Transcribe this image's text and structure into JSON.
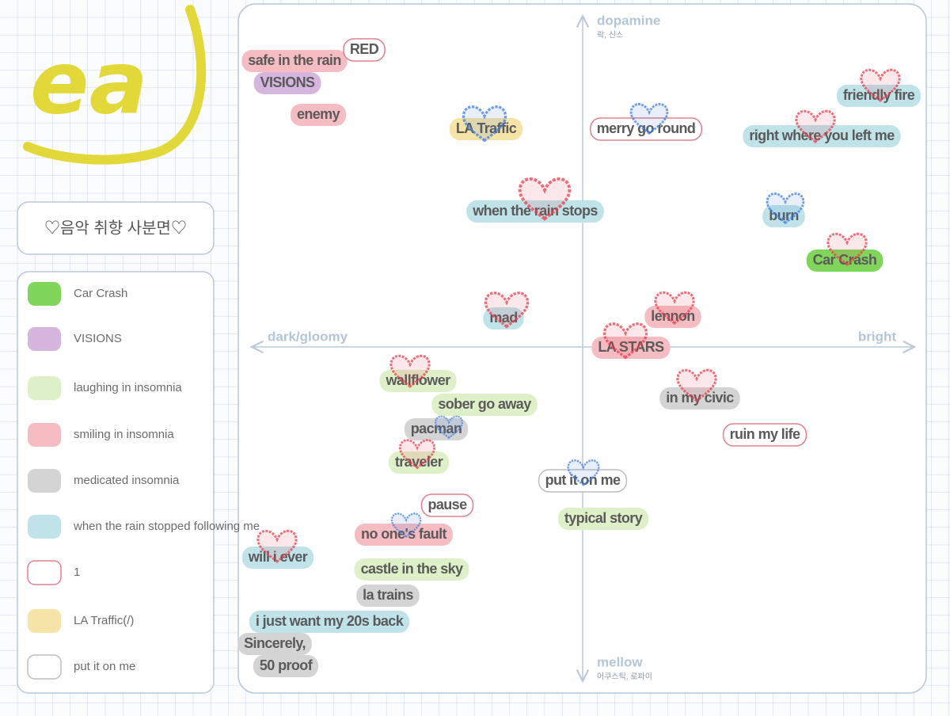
{
  "logo": "ea",
  "title": "♡음악 취향 사분면♡",
  "legend": [
    {
      "label": "Car Crash",
      "color": "#7fd65a",
      "style": "fill"
    },
    {
      "label": "VISIONS",
      "color": "#d6b6df",
      "style": "fill"
    },
    {
      "label": "laughing in insomnia",
      "color": "#def0c8",
      "style": "fill"
    },
    {
      "label": "smiling in insomnia",
      "color": "#f5bcc2",
      "style": "fill"
    },
    {
      "label": "medicated insomnia",
      "color": "#d4d4d4",
      "style": "fill"
    },
    {
      "label": "when the rain stopped following me",
      "color": "#bfe3e9",
      "style": "fill"
    },
    {
      "label": "1",
      "color": "#e0808e",
      "style": "outline"
    },
    {
      "label": "LA Traffic(/)",
      "color": "#f5e3a8",
      "style": "fill"
    },
    {
      "label": "put it on me",
      "color": "#bdbdbd",
      "style": "outline"
    }
  ],
  "axes": {
    "top": {
      "label": "dopamine",
      "sub": "락, 신스"
    },
    "bottom": {
      "label": "mellow",
      "sub": "어쿠스틱, 로파이"
    },
    "left": {
      "label": "dark/gloomy"
    },
    "right": {
      "label": "bright"
    }
  },
  "songs": [
    {
      "label": "safe in the rain",
      "color": "#f5bcc2",
      "style": "fill"
    },
    {
      "label": "RED",
      "color": "#e0808e",
      "style": "outline"
    },
    {
      "label": "VISIONS",
      "color": "#d6b6df",
      "style": "fill"
    },
    {
      "label": "enemy",
      "color": "#f5bcc2",
      "style": "fill"
    },
    {
      "label": "LA Traffic",
      "color": "#f5e3a8",
      "style": "fill"
    },
    {
      "label": "merry go round",
      "color": "#e0808e",
      "style": "outline"
    },
    {
      "label": "friendly fire",
      "color": "#bfe3e9",
      "style": "fill"
    },
    {
      "label": "right where you left me",
      "color": "#bfe3e9",
      "style": "fill"
    },
    {
      "label": "when the rain stops",
      "color": "#bfe3e9",
      "style": "fill"
    },
    {
      "label": "burn",
      "color": "#bfe3e9",
      "style": "fill"
    },
    {
      "label": "Car Crash",
      "color": "#7fd65a",
      "style": "fill"
    },
    {
      "label": "mad",
      "color": "#bfe3e9",
      "style": "fill"
    },
    {
      "label": "lennon",
      "color": "#f5bcc2",
      "style": "fill"
    },
    {
      "label": "LA STARS",
      "color": "#f5bcc2",
      "style": "fill"
    },
    {
      "label": "wallflower",
      "color": "#def0c8",
      "style": "fill"
    },
    {
      "label": "sober go away",
      "color": "#def0c8",
      "style": "fill"
    },
    {
      "label": "in my civic",
      "color": "#d4d4d4",
      "style": "fill"
    },
    {
      "label": "ruin my life",
      "color": "#e0808e",
      "style": "outline"
    },
    {
      "label": "pacman",
      "color": "#d4d4d4",
      "style": "fill"
    },
    {
      "label": "traveler",
      "color": "#def0c8",
      "style": "fill"
    },
    {
      "label": "put it on me",
      "color": "#bdbdbd",
      "style": "outline"
    },
    {
      "label": "pause",
      "color": "#e0808e",
      "style": "outline"
    },
    {
      "label": "typical story",
      "color": "#def0c8",
      "style": "fill"
    },
    {
      "label": "no one's fault",
      "color": "#f5bcc2",
      "style": "fill"
    },
    {
      "label": "will i ever",
      "color": "#bfe3e9",
      "style": "fill"
    },
    {
      "label": "castle in the sky",
      "color": "#def0c8",
      "style": "fill"
    },
    {
      "label": "la trains",
      "color": "#d4d4d4",
      "style": "fill"
    },
    {
      "label": "i just want my 20s back",
      "color": "#bfe3e9",
      "style": "fill"
    },
    {
      "label": "Sincerely,",
      "color": "#d4d4d4",
      "style": "fill"
    },
    {
      "label": "50 proof",
      "color": "#d4d4d4",
      "style": "fill"
    }
  ]
}
